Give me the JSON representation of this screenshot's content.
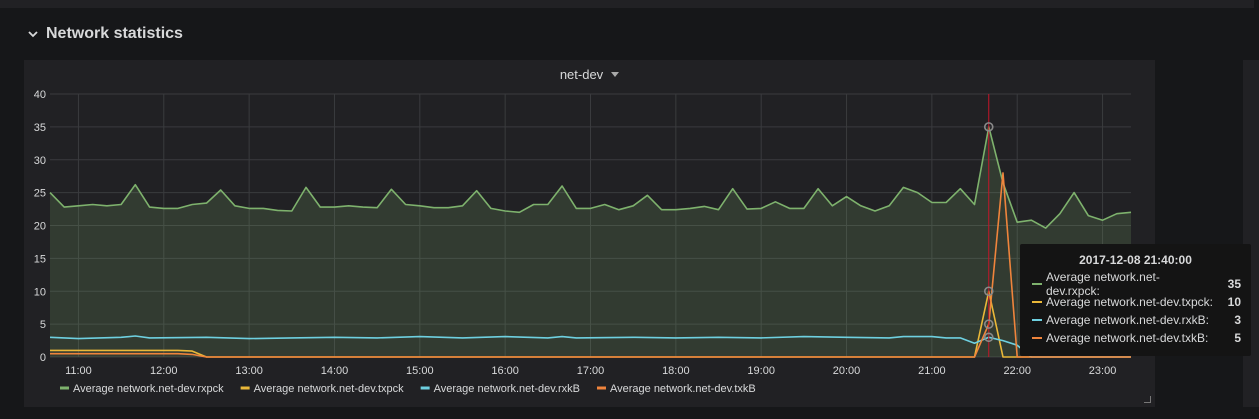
{
  "row": {
    "title": "Network statistics"
  },
  "panel": {
    "title": "net-dev"
  },
  "colors": {
    "rxpck": "#7eb26d",
    "txpck": "#eab839",
    "rxkB": "#6ed0e0",
    "txkB": "#ef843c"
  },
  "tooltip": {
    "time": "2017-12-08 21:40:00",
    "rows": [
      {
        "name": "Average network.net-dev.rxpck:",
        "value": "35",
        "color": "#7eb26d"
      },
      {
        "name": "Average network.net-dev.txpck:",
        "value": "10",
        "color": "#eab839"
      },
      {
        "name": "Average network.net-dev.rxkB:",
        "value": "3",
        "color": "#6ed0e0"
      },
      {
        "name": "Average network.net-dev.txkB:",
        "value": "5",
        "color": "#ef843c"
      }
    ]
  },
  "chart_data": {
    "type": "area",
    "title": "net-dev",
    "ylim": [
      0,
      40
    ],
    "yticks": [
      "0",
      "5",
      "10",
      "15",
      "20",
      "25",
      "30",
      "35",
      "40"
    ],
    "xticks": [
      "11:00",
      "12:00",
      "13:00",
      "14:00",
      "15:00",
      "16:00",
      "17:00",
      "18:00",
      "19:00",
      "20:00",
      "21:00",
      "22:00",
      "23:00"
    ],
    "xlim": [
      "10:40",
      "23:20"
    ],
    "grid": true,
    "legend_position": "bottom",
    "hover_time": "21:40",
    "series": [
      {
        "name": "Average network.net-dev.rxpck",
        "color": "#7eb26d",
        "fill": true,
        "x": [
          "10:40",
          "10:50",
          "11:00",
          "11:10",
          "11:20",
          "11:30",
          "11:40",
          "11:50",
          "12:00",
          "12:10",
          "12:20",
          "12:30",
          "12:40",
          "12:50",
          "13:00",
          "13:10",
          "13:20",
          "13:30",
          "13:40",
          "13:50",
          "14:00",
          "14:10",
          "14:20",
          "14:30",
          "14:40",
          "14:50",
          "15:00",
          "15:10",
          "15:20",
          "15:30",
          "15:40",
          "15:50",
          "16:00",
          "16:10",
          "16:20",
          "16:30",
          "16:40",
          "16:50",
          "17:00",
          "17:10",
          "17:20",
          "17:30",
          "17:40",
          "17:50",
          "18:00",
          "18:10",
          "18:20",
          "18:30",
          "18:40",
          "18:50",
          "19:00",
          "19:10",
          "19:20",
          "19:30",
          "19:40",
          "19:50",
          "20:00",
          "20:10",
          "20:20",
          "20:30",
          "20:40",
          "20:50",
          "21:00",
          "21:10",
          "21:20",
          "21:30",
          "21:40",
          "21:50",
          "22:00",
          "22:10",
          "22:20",
          "22:30",
          "22:40",
          "22:50",
          "23:00",
          "23:10",
          "23:20"
        ],
        "values": [
          25,
          22.8,
          23,
          23.2,
          23,
          23.2,
          26.2,
          22.8,
          22.6,
          22.6,
          23.2,
          23.4,
          25.4,
          23,
          22.6,
          22.6,
          22.3,
          22.2,
          25.8,
          22.8,
          22.8,
          23,
          22.8,
          22.7,
          25.5,
          23.2,
          23,
          22.7,
          22.7,
          23,
          25.3,
          22.6,
          22.2,
          22,
          23.2,
          23.2,
          26,
          22.6,
          22.6,
          23.2,
          22.4,
          23,
          24.6,
          22.4,
          22.4,
          22.6,
          22.9,
          22.4,
          25.6,
          22.5,
          22.6,
          23.6,
          22.6,
          22.6,
          25.6,
          23,
          24.4,
          23,
          22.2,
          23,
          25.8,
          25,
          23.5,
          23.5,
          25.6,
          23.2,
          35,
          26.5,
          20.5,
          20.8,
          19.6,
          21.8,
          25,
          21.5,
          20.8,
          21.8,
          22
        ]
      },
      {
        "name": "Average network.net-dev.txpck",
        "color": "#eab839",
        "fill": false,
        "x": [
          "10:40",
          "12:10",
          "12:20",
          "12:30",
          "21:20",
          "21:30",
          "21:40",
          "21:50",
          "22:00",
          "23:20"
        ],
        "values": [
          1,
          1,
          0.9,
          0,
          0,
          0,
          10,
          0,
          0,
          0
        ]
      },
      {
        "name": "Average network.net-dev.rxkB",
        "color": "#6ed0e0",
        "fill": false,
        "x": [
          "10:40",
          "11:00",
          "11:30",
          "11:40",
          "11:50",
          "12:30",
          "13:00",
          "13:30",
          "14:00",
          "14:30",
          "15:00",
          "15:30",
          "16:00",
          "16:30",
          "16:40",
          "16:50",
          "17:30",
          "18:00",
          "18:30",
          "19:00",
          "19:30",
          "20:00",
          "20:30",
          "20:40",
          "21:00",
          "21:10",
          "21:20",
          "21:30",
          "21:40",
          "21:50",
          "22:00",
          "22:10",
          "23:20"
        ],
        "values": [
          3,
          2.8,
          3,
          3.2,
          2.9,
          3,
          2.8,
          2.9,
          3,
          2.9,
          3.1,
          2.9,
          3.1,
          2.9,
          3.1,
          2.9,
          3,
          2.9,
          3,
          2.9,
          3.1,
          3,
          2.9,
          3.1,
          3.1,
          2.9,
          2.9,
          2.1,
          3,
          2.5,
          1.8,
          0,
          0
        ]
      },
      {
        "name": "Average network.net-dev.txkB",
        "color": "#ef843c",
        "fill": false,
        "x": [
          "10:40",
          "12:10",
          "12:20",
          "12:30",
          "21:20",
          "21:30",
          "21:40",
          "21:50",
          "22:00",
          "22:10",
          "23:20"
        ],
        "values": [
          0.5,
          0.5,
          0.4,
          0,
          0,
          0,
          5,
          28,
          0,
          0,
          0
        ]
      }
    ]
  }
}
